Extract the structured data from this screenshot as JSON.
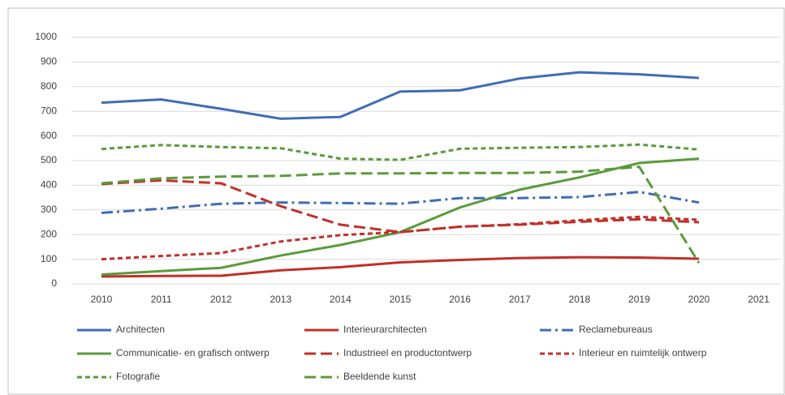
{
  "chart_data": {
    "type": "line",
    "categories": [
      "2010",
      "2011",
      "2012",
      "2013",
      "2014",
      "2015",
      "2016",
      "2017",
      "2018",
      "2019",
      "2020",
      "2021"
    ],
    "ylim": [
      0,
      1000
    ],
    "yticks": [
      0,
      100,
      200,
      300,
      400,
      500,
      600,
      700,
      800,
      900,
      1000
    ],
    "grid": true,
    "legend": "bottom",
    "series": [
      {
        "name": "Architecten",
        "color": "#3f6db5",
        "dash": "solid",
        "values": [
          735,
          748,
          710,
          670,
          677,
          780,
          785,
          833,
          858,
          850,
          835,
          null
        ]
      },
      {
        "name": "Interieurarchitecten",
        "color": "#c0302a",
        "dash": "solid",
        "values": [
          30,
          32,
          33,
          55,
          68,
          87,
          97,
          105,
          108,
          107,
          102,
          null
        ]
      },
      {
        "name": "Reclamebureaus",
        "color": "#3f6db5",
        "dash": "dashdot",
        "values": [
          288,
          305,
          325,
          330,
          328,
          325,
          348,
          348,
          352,
          373,
          330,
          null
        ]
      },
      {
        "name": "Communicatie- en grafisch ontwerp",
        "color": "#5a9a3c",
        "dash": "solid",
        "values": [
          38,
          52,
          65,
          115,
          158,
          210,
          310,
          382,
          432,
          490,
          508,
          null
        ]
      },
      {
        "name": "Industrieel en productontwerp",
        "color": "#c0302a",
        "dash": "long",
        "values": [
          405,
          420,
          408,
          315,
          240,
          210,
          232,
          240,
          252,
          262,
          250,
          null
        ]
      },
      {
        "name": "Interieur en ruimtelijk ontwerp",
        "color": "#c0302a",
        "dash": "short",
        "values": [
          100,
          113,
          125,
          172,
          198,
          210,
          232,
          242,
          258,
          272,
          260,
          null
        ]
      },
      {
        "name": "Fotografie",
        "color": "#5a9a3c",
        "dash": "short",
        "values": [
          547,
          563,
          555,
          550,
          508,
          503,
          548,
          552,
          555,
          565,
          545,
          null
        ]
      },
      {
        "name": "Beeldende kunst",
        "color": "#5a9a3c",
        "dash": "long",
        "values": [
          408,
          428,
          435,
          438,
          448,
          448,
          450,
          450,
          455,
          475,
          85,
          null
        ]
      }
    ]
  }
}
